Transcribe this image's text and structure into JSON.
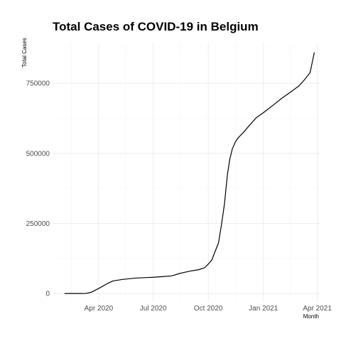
{
  "chart_data": {
    "type": "line",
    "title": "Total Cases of COVID-19 in Belgium",
    "xlabel": "Month",
    "ylabel": "Total Cases",
    "xlim": [
      "2020-01-15",
      "2021-04-05"
    ],
    "ylim": [
      -30000,
      895000
    ],
    "x_ticks": [
      {
        "date": "2020-04-01",
        "label": "Apr 2020"
      },
      {
        "date": "2020-07-01",
        "label": "Jul 2020"
      },
      {
        "date": "2020-10-01",
        "label": "Oct 2020"
      },
      {
        "date": "2021-01-01",
        "label": "Jan 2021"
      },
      {
        "date": "2021-04-01",
        "label": "Apr 2021"
      }
    ],
    "y_ticks": [
      {
        "value": 0,
        "label": "0"
      },
      {
        "value": 250000,
        "label": "250000"
      },
      {
        "value": 500000,
        "label": "500000"
      },
      {
        "value": 750000,
        "label": "750000"
      }
    ],
    "grid": true,
    "series": [
      {
        "color": "#000000",
        "x": [
          "2020-02-04",
          "2020-03-01",
          "2020-03-10",
          "2020-03-15",
          "2020-03-20",
          "2020-04-01",
          "2020-04-15",
          "2020-04-25",
          "2020-05-10",
          "2020-06-01",
          "2020-06-20",
          "2020-07-01",
          "2020-07-15",
          "2020-08-01",
          "2020-08-15",
          "2020-09-01",
          "2020-09-15",
          "2020-09-25",
          "2020-10-01",
          "2020-10-07",
          "2020-10-12",
          "2020-10-18",
          "2020-10-23",
          "2020-10-28",
          "2020-11-02",
          "2020-11-06",
          "2020-11-10",
          "2020-11-15",
          "2020-11-20",
          "2020-11-28",
          "2020-12-08",
          "2020-12-20",
          "2021-01-01",
          "2021-01-15",
          "2021-02-01",
          "2021-02-15",
          "2021-03-01",
          "2021-03-10",
          "2021-03-20",
          "2021-03-27"
        ],
        "values": [
          0,
          0,
          300,
          2000,
          5000,
          18000,
          35000,
          45000,
          50000,
          55000,
          57000,
          58000,
          60000,
          63000,
          72000,
          80000,
          85000,
          92000,
          105000,
          120000,
          148000,
          180000,
          245000,
          320000,
          425000,
          480000,
          515000,
          540000,
          556000,
          573000,
          598000,
          627000,
          645000,
          668000,
          697000,
          718000,
          740000,
          761000,
          788000,
          860000
        ]
      }
    ]
  }
}
